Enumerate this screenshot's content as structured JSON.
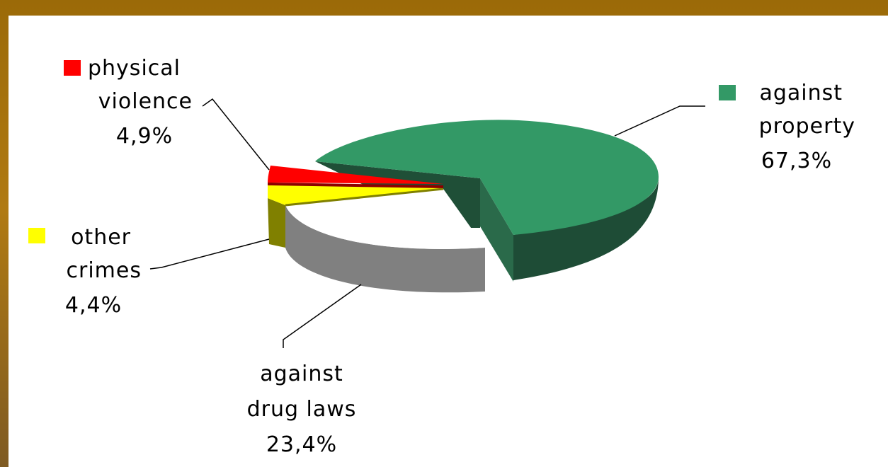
{
  "chart_data": {
    "type": "pie",
    "is_3d": true,
    "exploded": true,
    "slices": [
      {
        "key": "property",
        "label_lines": [
          "against",
          "property"
        ],
        "value": 67.3,
        "value_label": "67,3%",
        "color": "#339966",
        "legend_marker": true
      },
      {
        "key": "drugs",
        "label_lines": [
          "against",
          "drug laws"
        ],
        "value": 23.4,
        "value_label": "23,4%",
        "color": "#ffffff",
        "legend_marker": false
      },
      {
        "key": "other",
        "label_lines": [
          "other",
          "crimes"
        ],
        "value": 4.4,
        "value_label": "4,4%",
        "color": "#ffff00",
        "legend_marker": true
      },
      {
        "key": "violence",
        "label_lines": [
          "physical",
          "violence"
        ],
        "value": 4.9,
        "value_label": "4,9%",
        "color": "#ff0000",
        "legend_marker": true
      }
    ]
  }
}
